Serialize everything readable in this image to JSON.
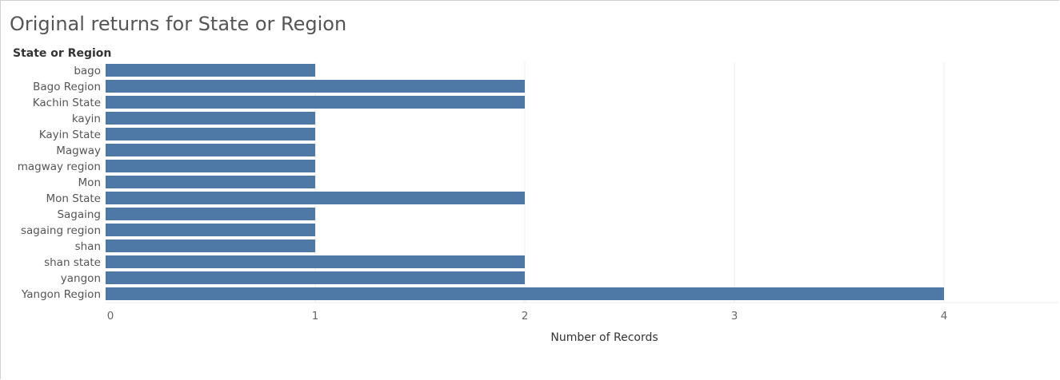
{
  "chart_data": {
    "type": "bar",
    "orientation": "horizontal",
    "title": "Original returns for State or Region",
    "row_header": "State or Region",
    "xlabel": "Number of Records",
    "categories": [
      "bago",
      "Bago Region",
      "Kachin State",
      "kayin",
      "Kayin State",
      "Magway",
      "magway region",
      "Mon",
      "Mon State",
      "Sagaing",
      "sagaing region",
      "shan",
      "shan state",
      "yangon",
      "Yangon Region"
    ],
    "values": [
      1,
      2,
      2,
      1,
      1,
      1,
      1,
      1,
      2,
      1,
      1,
      1,
      2,
      2,
      4
    ],
    "xticks": [
      "0",
      "1",
      "2",
      "3",
      "4"
    ],
    "xlim": [
      0,
      4.5
    ],
    "grid": "vertical",
    "bar_color": "#4e79a7",
    "gridline_color": "#ececec"
  }
}
